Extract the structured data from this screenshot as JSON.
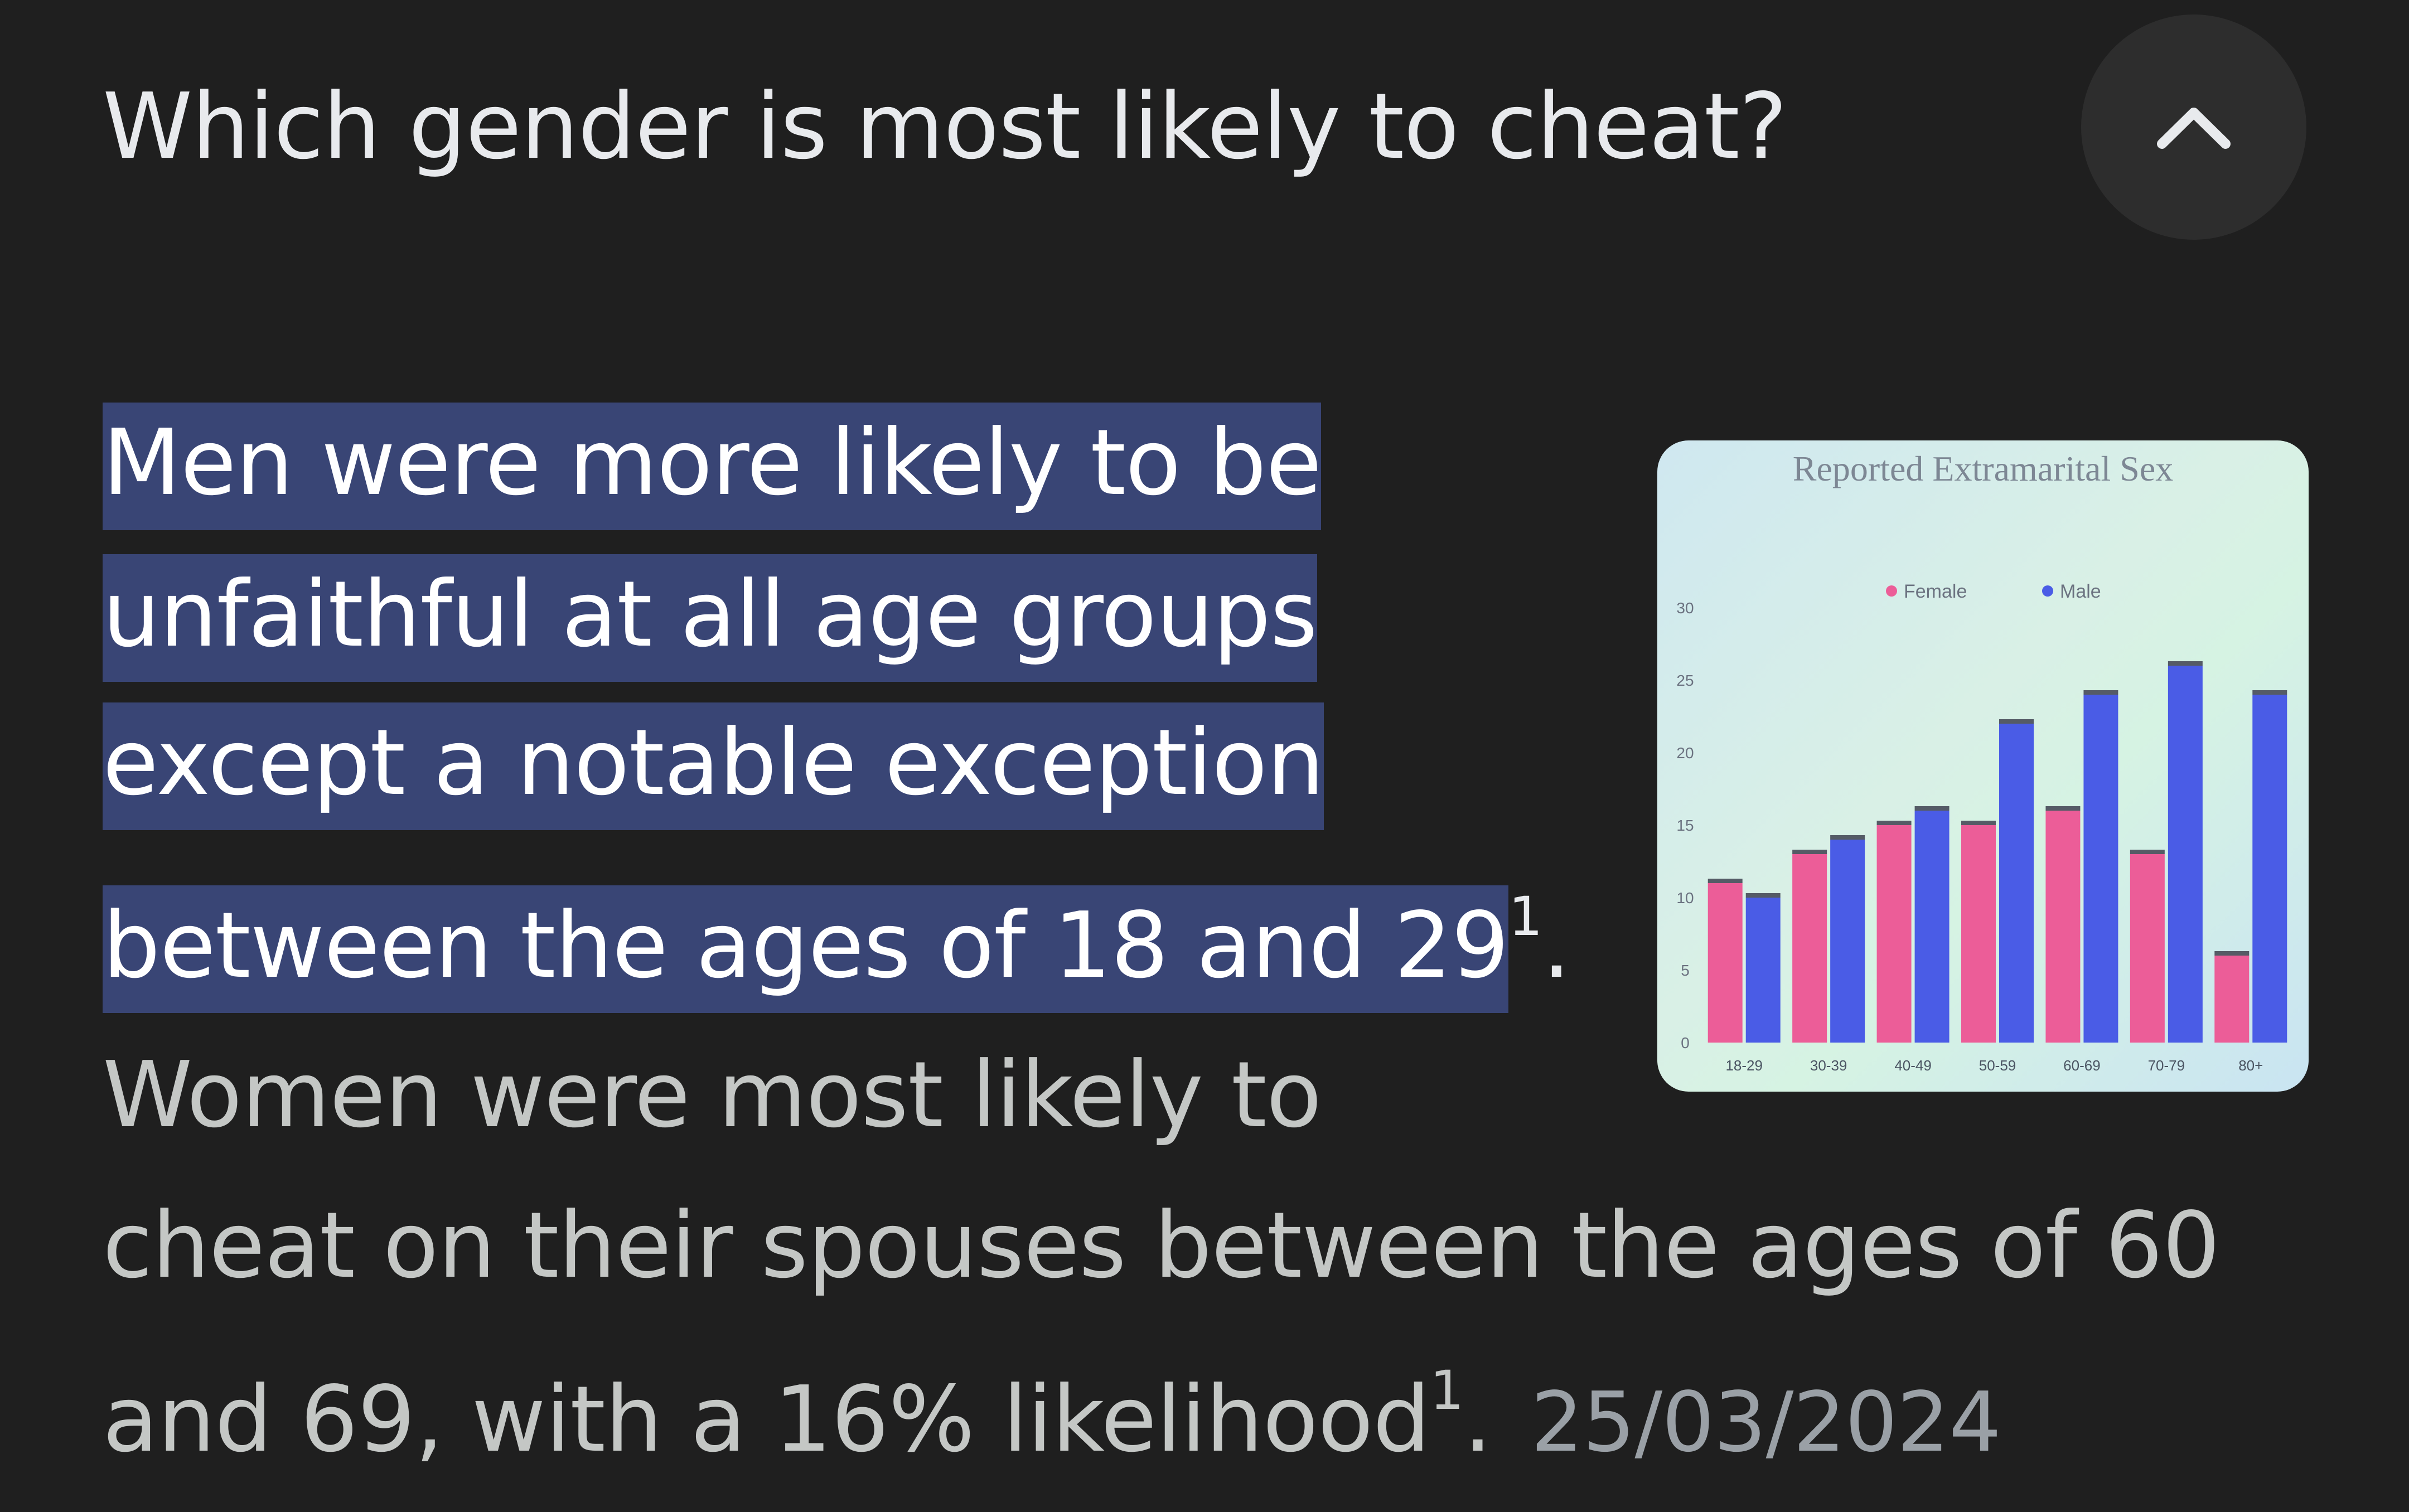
{
  "question": "Which gender is most likely to cheat?",
  "collapse_icon": "chevron-up-icon",
  "answer": {
    "highlight_lines": [
      "Men were more likely to be",
      "unfaithful at all age groups",
      "except a notable exception",
      "between the ages of 18 and 29"
    ],
    "citation": "1",
    "after_highlight": ".",
    "rest_lines": [
      "Women were most likely to",
      "cheat on their spouses between the ages of 60",
      "and 69, with a 16% likelihood"
    ],
    "rest_end": ".",
    "date": "25/03/2024"
  },
  "colors": {
    "background": "#1f1f1f",
    "highlight": "#394575",
    "female": "#ec5d98",
    "male": "#4a5ce6"
  },
  "chart_data": {
    "type": "bar",
    "title": "Reported Extramarital Sex",
    "categories": [
      "18-29",
      "30-39",
      "40-49",
      "50-59",
      "60-69",
      "70-79",
      "80+"
    ],
    "series": [
      {
        "name": "Female",
        "values": [
          11,
          13,
          15,
          15,
          16,
          13,
          6
        ]
      },
      {
        "name": "Male",
        "values": [
          10,
          14,
          16,
          22,
          24,
          26,
          24
        ]
      }
    ],
    "ylim": [
      0,
      30
    ],
    "yticks": [
      "0",
      "5",
      "10",
      "15",
      "20",
      "25",
      "30"
    ],
    "legend": "top"
  }
}
